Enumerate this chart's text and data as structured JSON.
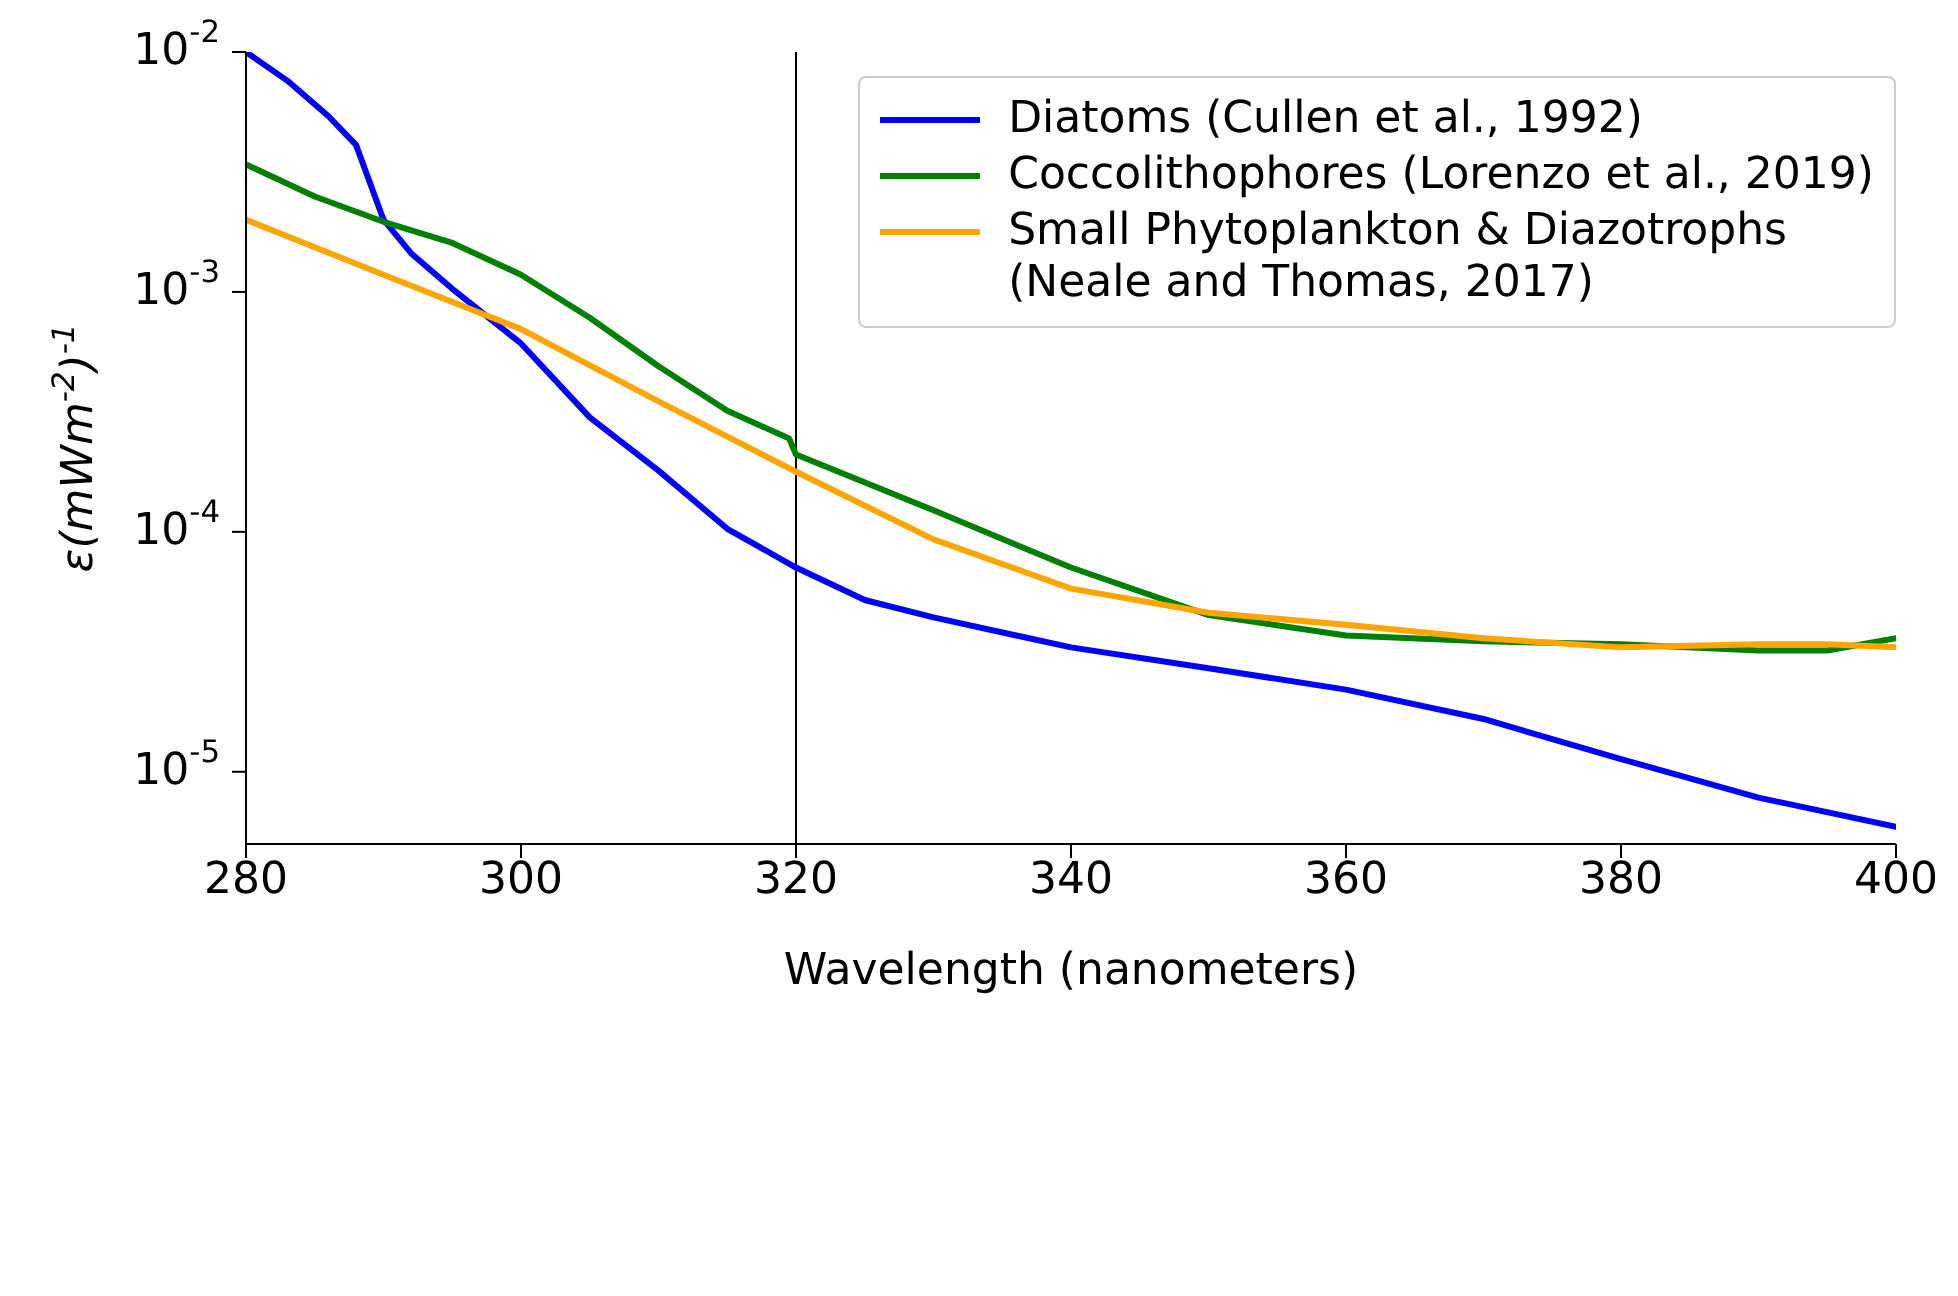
{
  "chart_data": {
    "type": "line",
    "xlabel": "Wavelength (nanometers)",
    "ylabel": "ε(mWm$^{-2}$)$^{-1}$",
    "xlim": [
      280,
      400
    ],
    "xticks": [
      280,
      300,
      320,
      340,
      360,
      380,
      400
    ],
    "ylim": [
      5e-06,
      0.01
    ],
    "yticks": [
      {
        "value": 1e-05,
        "label": "10$^{-5}$"
      },
      {
        "value": 0.0001,
        "label": "10$^{-4}$"
      },
      {
        "value": 0.001,
        "label": "10$^{-3}$"
      },
      {
        "value": 0.01,
        "label": "10$^{-2}$"
      }
    ],
    "log": "y",
    "grid": false,
    "legend": "top right",
    "marker": "none",
    "line_style": "solid",
    "ref_lines": [
      {
        "axis": "x",
        "value": 320,
        "color": "#000000"
      }
    ],
    "series": [
      {
        "name": "Diatoms (Cullen et al., 1992)",
        "color": "#0000ff",
        "x": [
          280,
          283,
          286,
          288,
          290,
          292,
          295,
          300,
          305,
          310,
          315,
          320,
          325,
          330,
          340,
          350,
          360,
          370,
          380,
          390,
          400
        ],
        "values": [
          0.01,
          0.0076,
          0.0054,
          0.0041,
          0.002,
          0.00145,
          0.00103,
          0.00061,
          0.0003,
          0.00018,
          0.000103,
          7.1e-05,
          5.2e-05,
          4.4e-05,
          3.3e-05,
          2.7e-05,
          2.2e-05,
          1.66e-05,
          1.13e-05,
          7.8e-06,
          5.9e-06
        ]
      },
      {
        "name": "Coccolithophores (Lorenzo et al., 2019)",
        "color": "#008000",
        "x": [
          280,
          285,
          290,
          295,
          300,
          305,
          310,
          315,
          319.5,
          320,
          330,
          340,
          350,
          360,
          370,
          380,
          390,
          395,
          400
        ],
        "values": [
          0.0034,
          0.0025,
          0.00196,
          0.0016,
          0.00118,
          0.00078,
          0.00049,
          0.00032,
          0.000245,
          0.00021,
          0.000123,
          7.1e-05,
          4.5e-05,
          3.7e-05,
          3.5e-05,
          3.4e-05,
          3.2e-05,
          3.2e-05,
          3.6e-05
        ]
      },
      {
        "name": "Small Phytoplankton & Diazotrophs\n(Neale and Thomas, 2017)",
        "color": "#ffa500",
        "x": [
          280,
          290,
          300,
          310,
          320,
          330,
          340,
          350,
          360,
          370,
          380,
          390,
          395,
          400
        ],
        "values": [
          0.002,
          0.00118,
          0.0007,
          0.00035,
          0.000178,
          9.3e-05,
          5.8e-05,
          4.6e-05,
          4.1e-05,
          3.6e-05,
          3.3e-05,
          3.4e-05,
          3.4e-05,
          3.3e-05
        ]
      }
    ]
  }
}
